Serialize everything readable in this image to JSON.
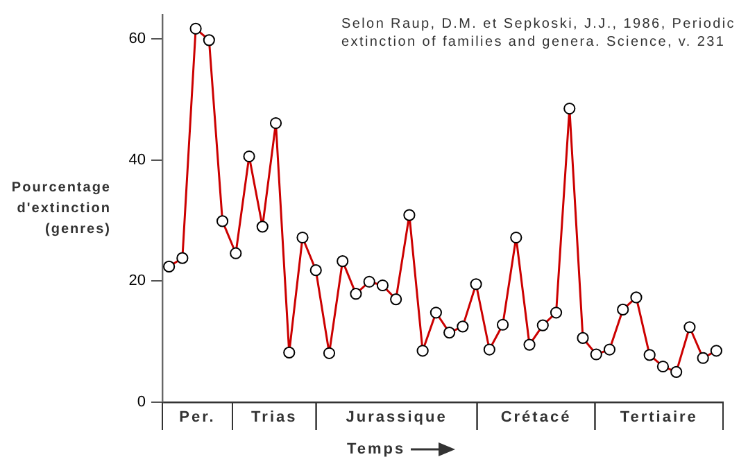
{
  "chart_data": {
    "type": "line",
    "xlabel": "Temps",
    "ylabel": "Pourcentage\nd'extinction\n(genres)",
    "annotations": [
      "Selon Raup, D.M. et Sepkoski, J.J., 1986, Periodic extinction of families and genera. Science, v. 231",
      "Per.",
      "Trias",
      "Jurassique",
      "Crétacé",
      "Tertiaire"
    ],
    "categories": [
      null,
      null,
      null,
      null,
      null,
      null,
      null,
      null,
      null,
      null,
      null,
      null,
      null,
      null,
      null,
      null,
      null,
      null,
      null,
      null,
      null,
      null,
      null,
      null,
      null,
      null,
      null,
      null,
      null,
      null,
      null,
      null,
      null,
      null,
      null,
      null,
      null,
      null,
      null,
      null,
      null,
      null
    ],
    "series": [
      {
        "color": "#cc0000",
        "values": [
          22.4,
          23.8,
          61.7,
          59.8,
          29.9,
          24.6,
          40.6,
          29.0,
          46.1,
          8.2,
          27.2,
          21.8,
          8.1,
          23.3,
          17.9,
          19.9,
          19.3,
          17.0,
          30.9,
          8.5,
          14.8,
          11.5,
          12.5,
          19.5,
          8.7,
          12.8,
          27.2,
          9.5,
          12.7,
          14.8,
          48.5,
          10.6,
          7.9,
          8.7,
          15.3,
          17.3,
          7.8,
          5.9,
          5.0,
          12.4,
          7.3,
          8.5
        ]
      }
    ],
    "ylim": [
      0,
      64
    ],
    "yticks": [
      0,
      20,
      40,
      60
    ],
    "grid": false,
    "legend": false,
    "marker": "circle",
    "line_style": "solid"
  }
}
